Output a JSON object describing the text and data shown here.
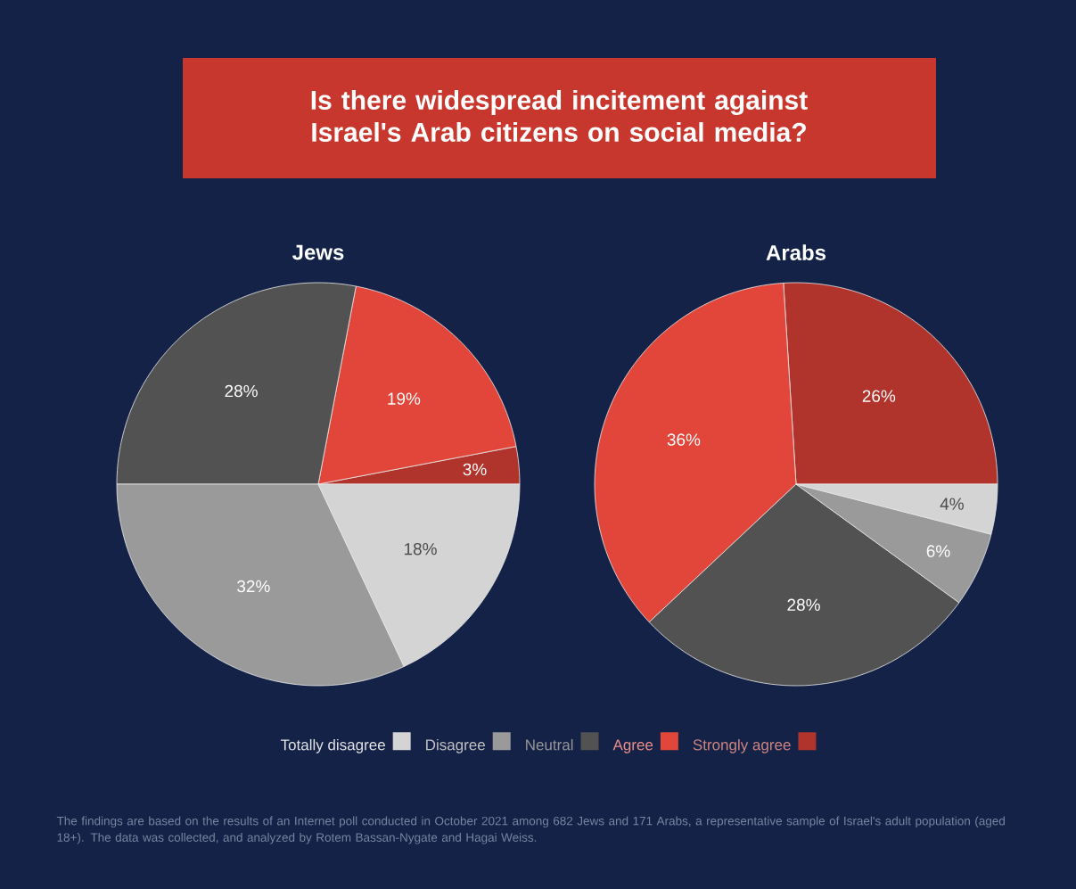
{
  "chart_data": [
    {
      "type": "pie",
      "title": "Jews",
      "categories": [
        "Totally disagree",
        "Disagree",
        "Neutral",
        "Agree",
        "Strongly agree"
      ],
      "values": [
        18,
        32,
        28,
        19,
        3
      ],
      "colors": [
        "#d4d4d4",
        "#9a9a9a",
        "#525252",
        "#e2463a",
        "#b0342b"
      ],
      "value_labels": [
        "18%",
        "32%",
        "28%",
        "19%",
        "3%"
      ],
      "legend": "bottom",
      "annotations": [
        "Is there widespread incitement against Israel's Arab citizens on social media?",
        "The findings are based on the results of an Internet poll conducted in October 2021 among 682 Jews and 171 Arabs, a representative sample of Israel's adult population (aged 18+). The data was collected, and analyzed by Rotem Bassan-Nygate and Hagai Weiss."
      ]
    },
    {
      "type": "pie",
      "title": "Arabs",
      "categories": [
        null,
        null,
        null,
        null,
        null
      ],
      "values": [
        4,
        6,
        28,
        36,
        26
      ],
      "colors": [
        "#d4d4d4",
        "#9a9a9a",
        "#525252",
        "#e2463a",
        "#b0342b"
      ],
      "value_labels": [
        "4%",
        "6%",
        "28%",
        "36%",
        "26%"
      ]
    }
  ]
}
